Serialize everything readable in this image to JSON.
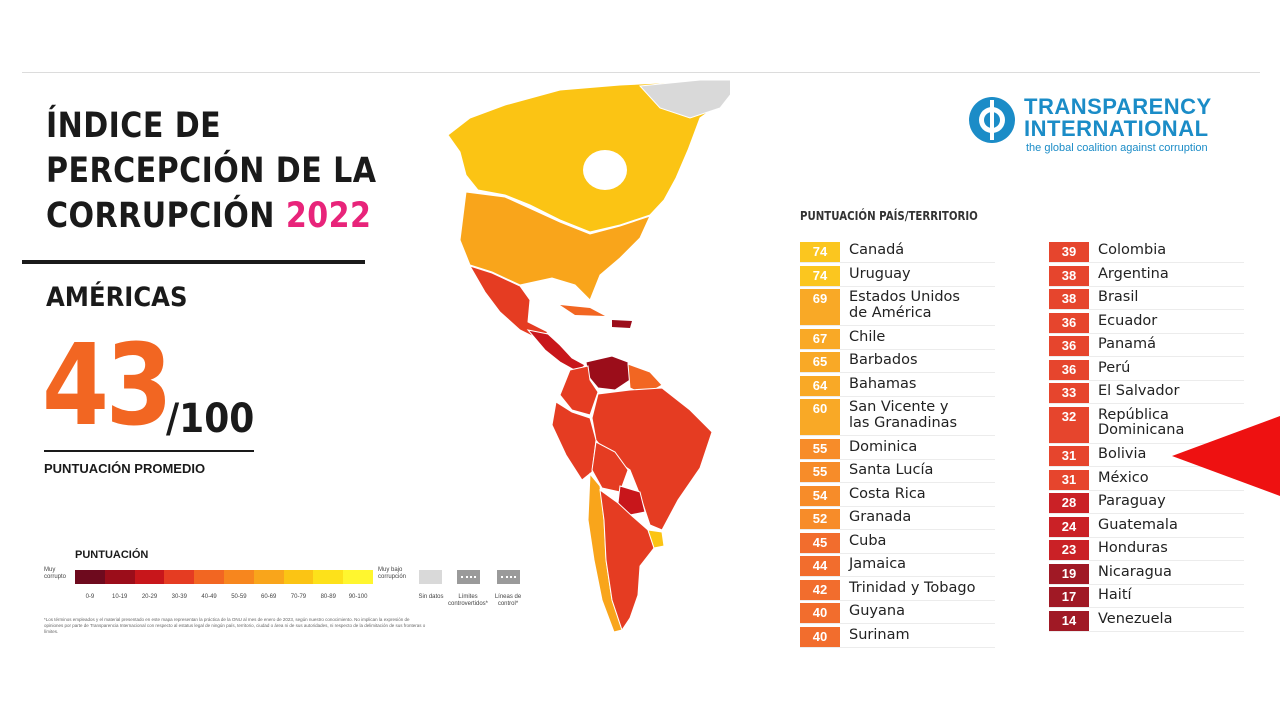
{
  "title": {
    "line1": "ÍNDICE DE",
    "line2": "PERCEPCIÓN DE LA",
    "line3": "CORRUPCIÓN",
    "year": "2022"
  },
  "region": "AMÉRICAS",
  "average": {
    "score": "43",
    "out_of": "/100",
    "label": "PUNTUACIÓN PROMEDIO"
  },
  "legend": {
    "title": "PUNTUACIÓN",
    "most": "Muy corrupto",
    "least": "Muy bajo corrupción",
    "ranges": [
      "0-9",
      "10-19",
      "20-29",
      "30-39",
      "40-49",
      "50-59",
      "60-69",
      "70-79",
      "80-89",
      "90-100"
    ],
    "colors": [
      "#6e0a1e",
      "#9b0d1a",
      "#c8161b",
      "#e53c22",
      "#f26622",
      "#f7861e",
      "#f9a51b",
      "#fbc414",
      "#fde11a",
      "#fff62f"
    ],
    "no_data": "Sin datos",
    "disputed": "Límites controvertidos*",
    "ceasefire": "Líneas de control*"
  },
  "footnote": "*Los términos empleados y el material presentado en este mapa representan la práctica de la ONU al mes de enero de 2023, según nuestro conocimiento. No implican la expresión de opiniones por parte de Transparencia Internacional con respecto al estatus legal de ningún país, territorio, ciudad o área ni de sus autoridades, ni respecto de la delimitación de sus fronteras o límites.",
  "logo": {
    "line1": "TRANSPARENCY",
    "line2": "INTERNATIONAL",
    "tagline": "the global coalition against corruption",
    "color": "#1b8cc7"
  },
  "list_header": "PUNTUACIÓN  PAÍS/TERRITORIO",
  "countries_left": [
    {
      "score": "74",
      "name": "Canadá",
      "color": "#fbc414"
    },
    {
      "score": "74",
      "name": "Uruguay",
      "color": "#fbc414"
    },
    {
      "score": "69",
      "name": "Estados Unidos\nde América",
      "color": "#f9a51b"
    },
    {
      "score": "67",
      "name": "Chile",
      "color": "#f9a51b"
    },
    {
      "score": "65",
      "name": "Barbados",
      "color": "#f9a51b"
    },
    {
      "score": "64",
      "name": "Bahamas",
      "color": "#f9a51b"
    },
    {
      "score": "60",
      "name": "San Vicente y\nlas Granadinas",
      "color": "#f9a51b"
    },
    {
      "score": "55",
      "name": "Dominica",
      "color": "#f7861e"
    },
    {
      "score": "55",
      "name": "Santa Lucía",
      "color": "#f7861e"
    },
    {
      "score": "54",
      "name": "Costa Rica",
      "color": "#f7861e"
    },
    {
      "score": "52",
      "name": "Granada",
      "color": "#f7861e"
    },
    {
      "score": "45",
      "name": "Cuba",
      "color": "#f26622"
    },
    {
      "score": "44",
      "name": "Jamaica",
      "color": "#f26622"
    },
    {
      "score": "42",
      "name": "Trinidad y Tobago",
      "color": "#f26622"
    },
    {
      "score": "40",
      "name": "Guyana",
      "color": "#f26622"
    },
    {
      "score": "40",
      "name": "Surinam",
      "color": "#f26622"
    }
  ],
  "countries_right": [
    {
      "score": "39",
      "name": "Colombia",
      "color": "#e53c22"
    },
    {
      "score": "38",
      "name": "Argentina",
      "color": "#e53c22"
    },
    {
      "score": "38",
      "name": "Brasil",
      "color": "#e53c22"
    },
    {
      "score": "36",
      "name": "Ecuador",
      "color": "#e53c22"
    },
    {
      "score": "36",
      "name": "Panamá",
      "color": "#e53c22"
    },
    {
      "score": "36",
      "name": "Perú",
      "color": "#e53c22"
    },
    {
      "score": "33",
      "name": "El Salvador",
      "color": "#e53c22"
    },
    {
      "score": "32",
      "name": "República\nDominicana",
      "color": "#e53c22"
    },
    {
      "score": "31",
      "name": "Bolivia",
      "color": "#e53c22"
    },
    {
      "score": "31",
      "name": "México",
      "color": "#e53c22"
    },
    {
      "score": "28",
      "name": "Paraguay",
      "color": "#c8161b"
    },
    {
      "score": "24",
      "name": "Guatemala",
      "color": "#c8161b"
    },
    {
      "score": "23",
      "name": "Honduras",
      "color": "#c8161b"
    },
    {
      "score": "19",
      "name": "Nicaragua",
      "color": "#9b0d1a"
    },
    {
      "score": "17",
      "name": "Haití",
      "color": "#9b0d1a"
    },
    {
      "score": "14",
      "name": "Venezuela",
      "color": "#9b0d1a"
    }
  ],
  "highlight_arrow_color": "#ee1111"
}
